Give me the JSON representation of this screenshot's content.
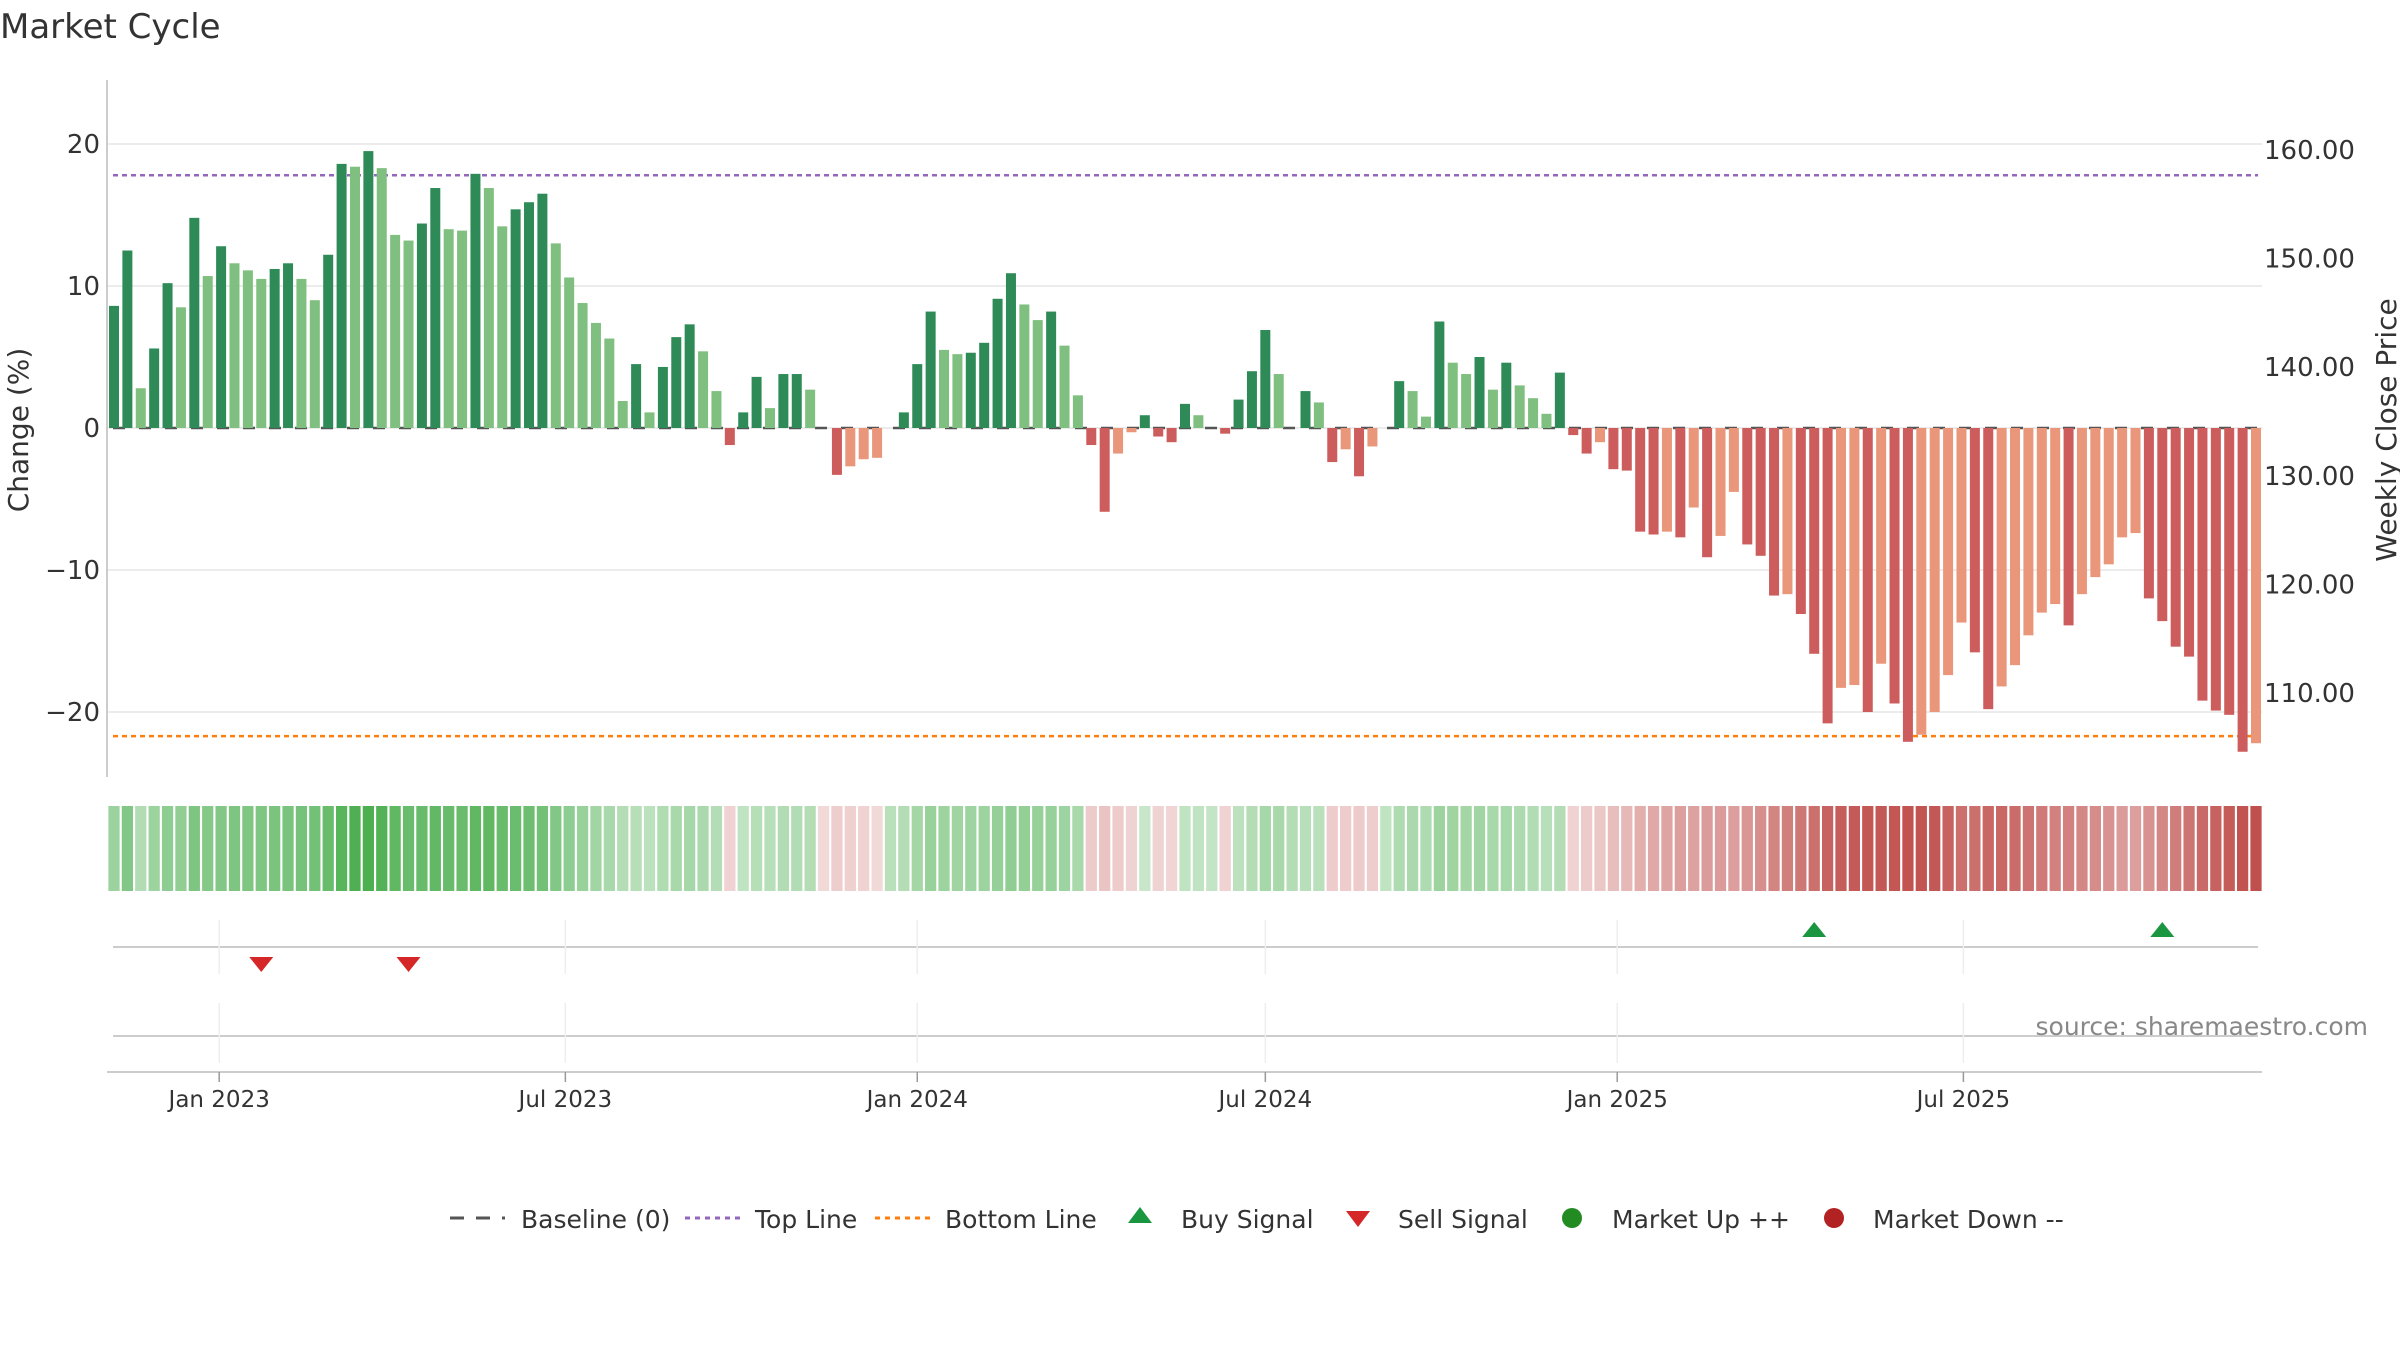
{
  "title": "Market Cycle",
  "source": "source: sharemaestro.com",
  "colors": {
    "up_strong": "#2e8b57",
    "up_light": "#7fbf7f",
    "down_strong": "#cd5c5c",
    "down_light": "#e9967a",
    "top_line": "#9467bd",
    "bottom_line": "#ff7f0e",
    "baseline": "#555555",
    "buy": "#1a9641",
    "sell": "#d62728",
    "market_up": "#228b22",
    "market_down": "#b22222",
    "grid": "#e6e6e6",
    "text": "#333333"
  },
  "chart_data": {
    "type": "bar",
    "title": "Market Cycle",
    "ylabel": "Change (%)",
    "ylabel_right": "Weekly Close Price",
    "ylim": [
      -24.5,
      24.5
    ],
    "y_ticks": [
      20,
      10,
      0,
      -10,
      -20
    ],
    "y_tick_labels": [
      "20",
      "10",
      "0",
      "−10",
      "−20"
    ],
    "right_ylim": [
      128.9,
      184.6
    ],
    "right_ticks": [
      160,
      150,
      140,
      130,
      120,
      110
    ],
    "right_tick_labels": [
      "160.00",
      "150.00",
      "140.00",
      "130.00",
      "120.00",
      "110.00"
    ],
    "top_line": 17.8,
    "bottom_line": -21.7,
    "x_start": "2022-11-07",
    "week_days": 7,
    "x_ticks": [
      "2023-01-01",
      "2023-07-01",
      "2024-01-01",
      "2024-07-01",
      "2025-01-01",
      "2025-07-01"
    ],
    "x_tick_labels": [
      "Jan 2023",
      "Jul 2023",
      "Jan 2024",
      "Jul 2024",
      "Jan 2025",
      "Jul 2025"
    ],
    "series": [
      {
        "values": [
          8.6,
          12.5,
          2.8,
          5.6,
          10.2,
          8.5,
          14.8,
          10.7,
          12.8,
          11.6,
          11.1,
          10.5,
          11.2,
          11.6,
          10.5,
          9.0,
          12.2,
          18.6,
          18.4,
          19.5,
          18.3,
          13.6,
          13.2,
          14.4,
          16.9,
          14.0,
          13.9,
          17.9,
          16.9,
          14.2,
          15.4,
          15.9,
          16.5,
          13.0,
          10.6,
          8.8,
          7.4,
          6.3,
          1.9,
          4.5,
          1.1,
          4.3,
          6.4,
          7.3,
          5.4,
          2.6,
          -1.2,
          1.1,
          3.6,
          1.4,
          3.8,
          3.8,
          2.7,
          0.0,
          -3.3,
          -2.7,
          -2.2,
          -2.1,
          0.0,
          1.1,
          4.5,
          8.2,
          5.5,
          5.2,
          5.3,
          6.0,
          9.1,
          10.9,
          8.7,
          7.6,
          8.2,
          5.8,
          2.3,
          -1.2,
          -5.9,
          -1.8,
          -0.3,
          0.9,
          -0.6,
          -1.0,
          1.7,
          0.9,
          0.0,
          -0.4,
          2.0,
          4.0,
          6.9,
          3.8,
          0.0,
          2.6,
          1.8,
          -2.4,
          -1.5,
          -3.4,
          -1.3,
          0.0,
          3.3,
          2.6,
          0.8,
          7.5,
          4.6,
          3.8,
          5.0,
          2.7,
          4.6,
          3.0,
          2.1,
          1.0,
          3.9,
          -0.5,
          -1.8,
          -1.0,
          -2.9,
          -3.0,
          -7.3,
          -7.5,
          -7.3,
          -7.7,
          -5.6,
          -9.1,
          -7.6,
          -4.5,
          -8.2,
          -9.0,
          -11.8,
          -11.7,
          -13.1,
          -15.9,
          -20.8,
          -18.3,
          -18.1,
          -20.0,
          -16.6,
          -19.4,
          -22.1,
          -21.6,
          -20.0,
          -17.4,
          -13.7,
          -15.8,
          -19.8,
          -18.2,
          -16.7,
          -14.6,
          -13.0,
          -12.4,
          -13.9,
          -11.7,
          -10.5,
          -9.6,
          -7.7,
          -7.4,
          -12.0,
          -13.6,
          -15.4,
          -16.1,
          -19.2,
          -19.9,
          -20.2,
          -22.8,
          -22.2
        ]
      }
    ],
    "heat_strip": [
      0.41,
      0.55,
      0.28,
      0.4,
      0.48,
      0.46,
      0.57,
      0.53,
      0.55,
      0.57,
      0.56,
      0.56,
      0.59,
      0.6,
      0.61,
      0.63,
      0.69,
      0.78,
      0.84,
      0.86,
      0.81,
      0.74,
      0.69,
      0.7,
      0.73,
      0.7,
      0.69,
      0.74,
      0.74,
      0.69,
      0.68,
      0.66,
      0.63,
      0.55,
      0.48,
      0.42,
      0.37,
      0.33,
      0.27,
      0.26,
      0.23,
      0.29,
      0.33,
      0.35,
      0.32,
      0.27,
      -0.16,
      0.2,
      0.26,
      0.25,
      0.28,
      0.28,
      0.27,
      -0.12,
      -0.18,
      -0.17,
      -0.16,
      -0.12,
      0.24,
      0.27,
      0.36,
      0.42,
      0.4,
      0.38,
      0.39,
      0.4,
      0.44,
      0.47,
      0.45,
      0.43,
      0.43,
      0.39,
      0.33,
      -0.2,
      -0.24,
      -0.19,
      -0.15,
      0.16,
      -0.15,
      -0.14,
      0.2,
      0.2,
      0.18,
      -0.16,
      0.22,
      0.27,
      0.35,
      0.33,
      0.27,
      0.25,
      0.24,
      -0.19,
      -0.19,
      -0.2,
      -0.18,
      0.2,
      0.3,
      0.32,
      0.3,
      0.4,
      0.38,
      0.36,
      0.37,
      0.33,
      0.34,
      0.31,
      0.28,
      0.25,
      0.27,
      -0.16,
      -0.2,
      -0.22,
      -0.27,
      -0.3,
      -0.36,
      -0.4,
      -0.42,
      -0.45,
      -0.44,
      -0.47,
      -0.47,
      -0.45,
      -0.5,
      -0.54,
      -0.6,
      -0.63,
      -0.67,
      -0.72,
      -0.8,
      -0.82,
      -0.84,
      -0.86,
      -0.85,
      -0.86,
      -0.88,
      -0.87,
      -0.85,
      -0.8,
      -0.72,
      -0.72,
      -0.77,
      -0.77,
      -0.74,
      -0.7,
      -0.66,
      -0.62,
      -0.62,
      -0.58,
      -0.56,
      -0.52,
      -0.47,
      -0.45,
      -0.52,
      -0.58,
      -0.64,
      -0.69,
      -0.75,
      -0.8,
      -0.83,
      -0.88,
      -0.9
    ],
    "signals": {
      "buy": [
        "2025-04-14",
        "2025-10-13"
      ],
      "sell": [
        "2023-01-23",
        "2023-04-10"
      ],
      "market_up": [],
      "market_down": []
    }
  },
  "legend": {
    "baseline": "Baseline (0)",
    "top_line": "Top Line",
    "bottom_line": "Bottom Line",
    "buy": "Buy Signal",
    "sell": "Sell Signal",
    "market_up": "Market Up ++",
    "market_down": "Market Down --"
  }
}
